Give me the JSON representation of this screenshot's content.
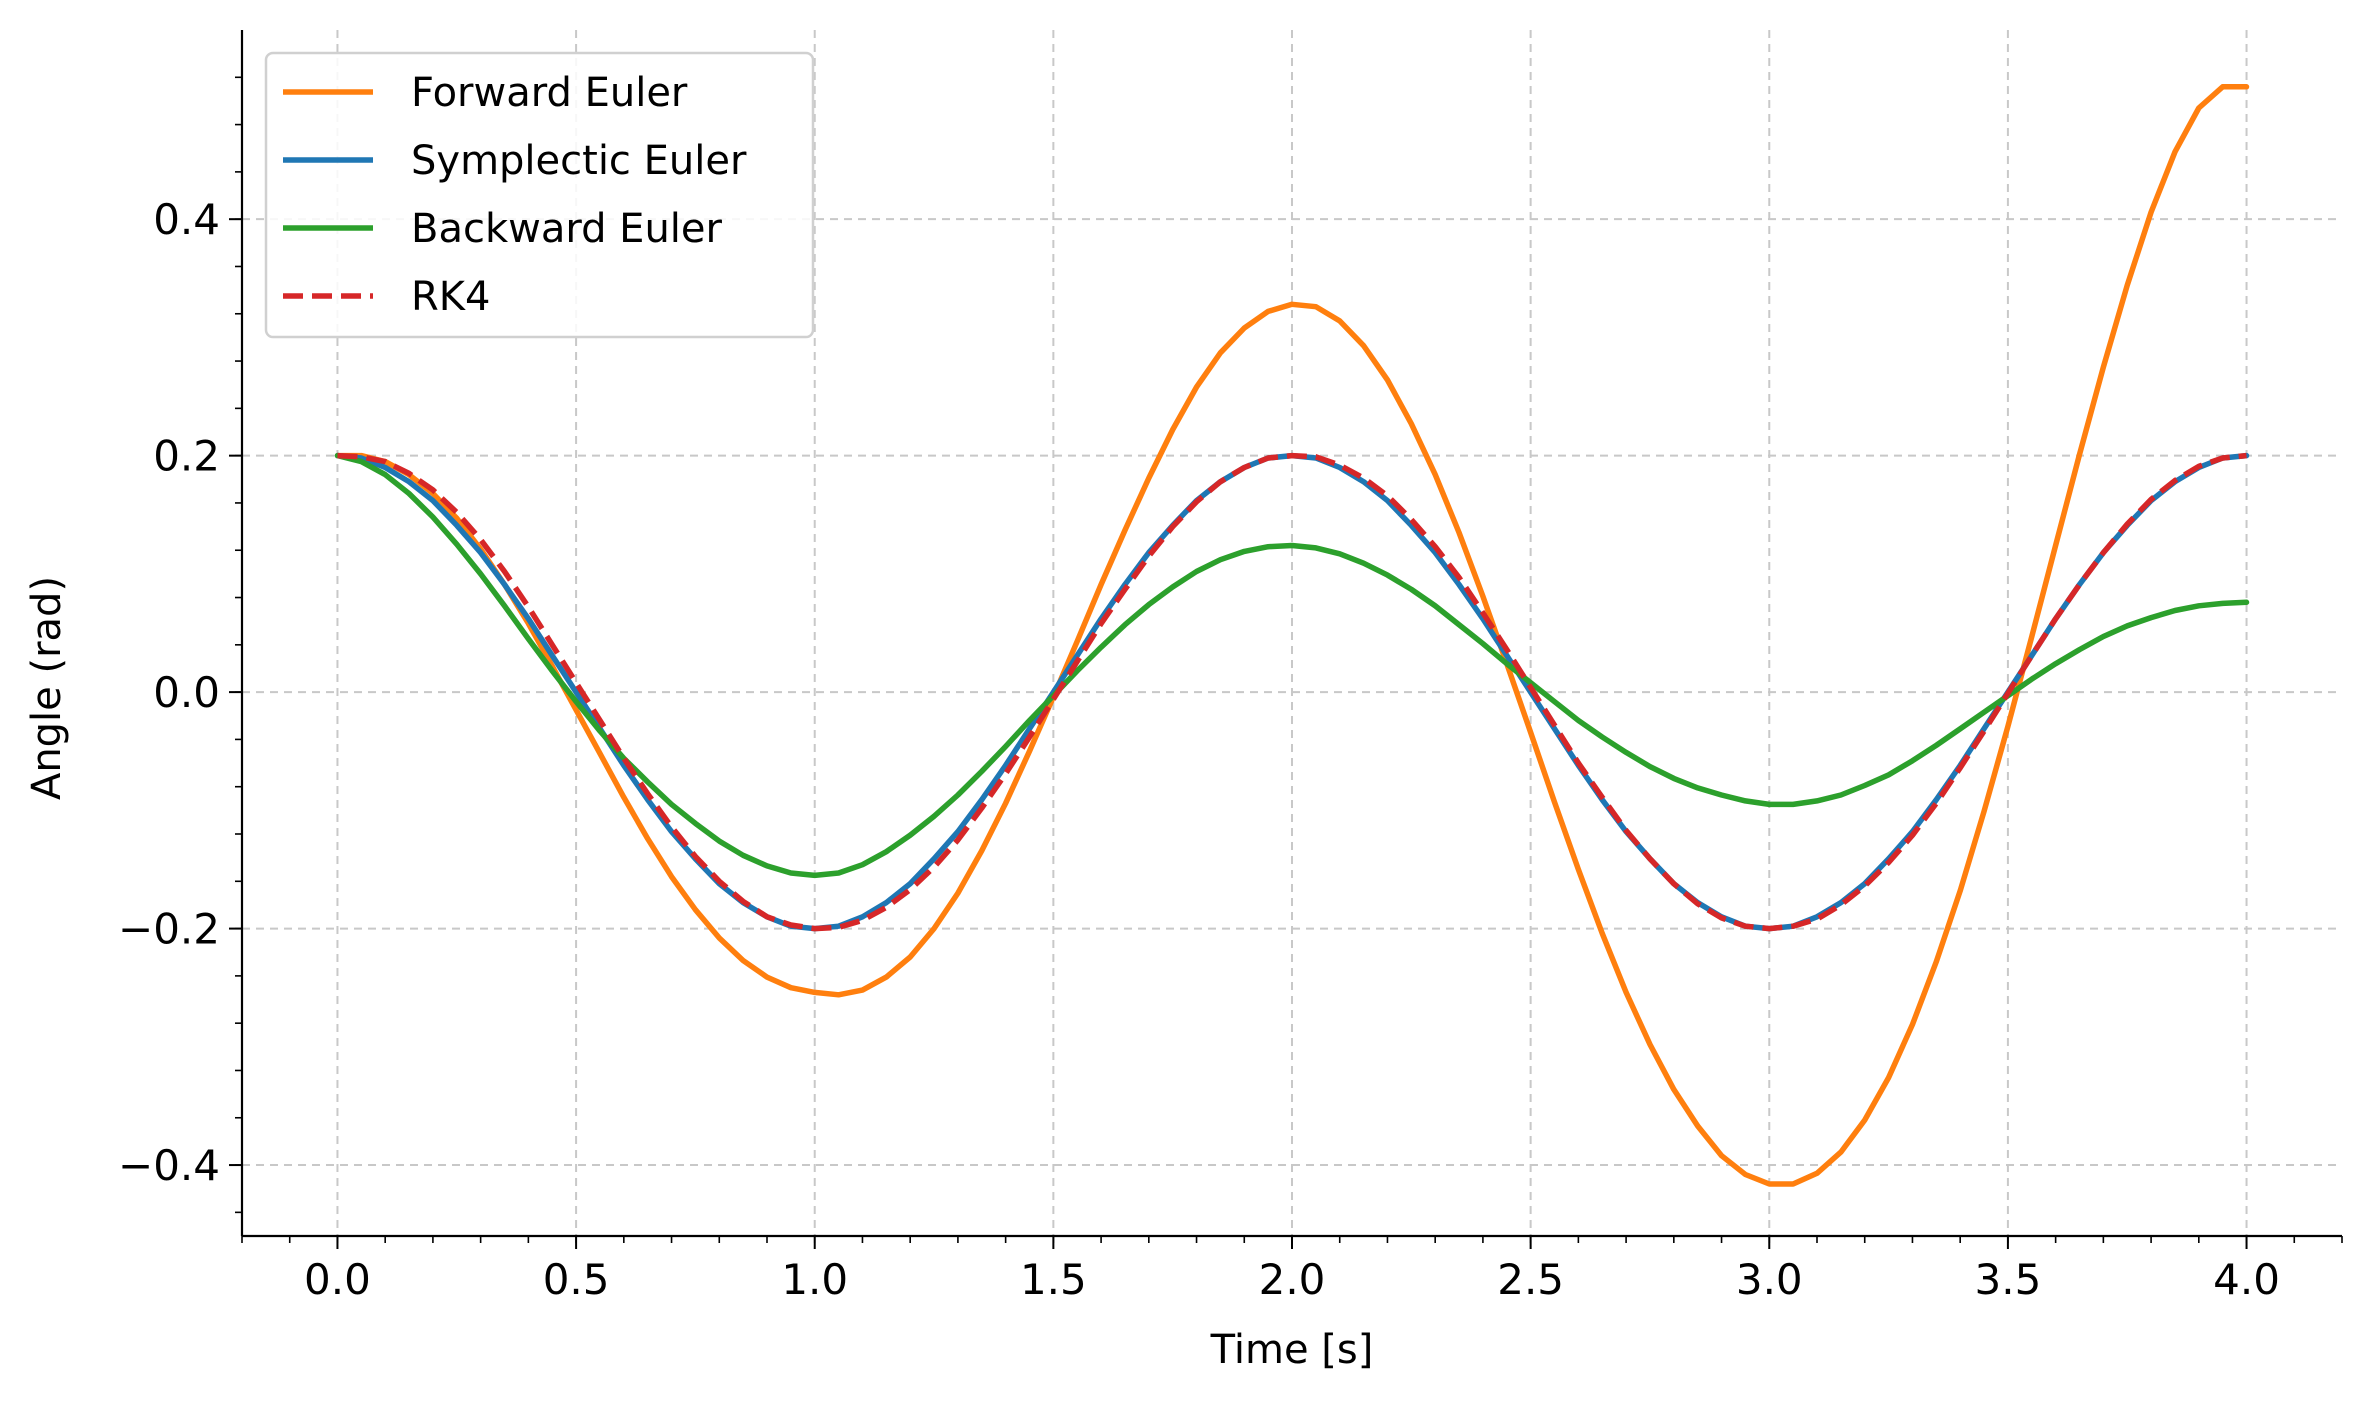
{
  "chart_data": {
    "type": "line",
    "title": "",
    "xlabel": "Time [s]",
    "ylabel": "Angle (rad)",
    "xlim": [
      -0.2,
      4.2
    ],
    "ylim": [
      -0.46,
      0.56
    ],
    "xticks": [
      0.0,
      0.5,
      1.0,
      1.5,
      2.0,
      2.5,
      3.0,
      3.5,
      4.0
    ],
    "xtick_labels": [
      "0.0",
      "0.5",
      "1.0",
      "1.5",
      "2.0",
      "2.5",
      "3.0",
      "3.5",
      "4.0"
    ],
    "yticks": [
      -0.4,
      -0.2,
      0.0,
      0.2,
      0.4
    ],
    "ytick_labels": [
      "−0.4",
      "−0.2",
      "0.0",
      "0.2",
      "0.4"
    ],
    "grid": true,
    "legend_position": "top-left",
    "series": [
      {
        "name": "Forward Euler",
        "color": "#ff7f0e",
        "dashed": false,
        "x": [
          0.0,
          0.05,
          0.1,
          0.15,
          0.2,
          0.25,
          0.3,
          0.35,
          0.4,
          0.45,
          0.5,
          0.55,
          0.6,
          0.65,
          0.7,
          0.75,
          0.8,
          0.85,
          0.9,
          0.95,
          1.0,
          1.05,
          1.1,
          1.15,
          1.2,
          1.25,
          1.3,
          1.35,
          1.4,
          1.45,
          1.5,
          1.55,
          1.6,
          1.65,
          1.7,
          1.75,
          1.8,
          1.85,
          1.9,
          1.95,
          2.0,
          2.05,
          2.1,
          2.15,
          2.2,
          2.25,
          2.3,
          2.35,
          2.4,
          2.45,
          2.5,
          2.55,
          2.6,
          2.65,
          2.7,
          2.75,
          2.8,
          2.85,
          2.9,
          2.95,
          3.0,
          3.05,
          3.1,
          3.15,
          3.2,
          3.25,
          3.3,
          3.35,
          3.4,
          3.45,
          3.5,
          3.55,
          3.6,
          3.65,
          3.7,
          3.75,
          3.8,
          3.85,
          3.9,
          3.95,
          4.0
        ],
        "y": [
          0.2,
          0.2,
          0.195,
          0.184,
          0.168,
          0.147,
          0.121,
          0.091,
          0.058,
          0.022,
          -0.015,
          -0.052,
          -0.089,
          -0.124,
          -0.156,
          -0.184,
          -0.208,
          -0.227,
          -0.241,
          -0.25,
          -0.254,
          -0.256,
          -0.252,
          -0.241,
          -0.224,
          -0.2,
          -0.17,
          -0.134,
          -0.094,
          -0.05,
          -0.004,
          0.043,
          0.091,
          0.137,
          0.181,
          0.222,
          0.258,
          0.287,
          0.308,
          0.322,
          0.328,
          0.326,
          0.314,
          0.293,
          0.264,
          0.227,
          0.184,
          0.135,
          0.081,
          0.024,
          -0.034,
          -0.093,
          -0.15,
          -0.204,
          -0.254,
          -0.298,
          -0.336,
          -0.367,
          -0.392,
          -0.408,
          -0.416,
          -0.416,
          -0.407,
          -0.389,
          -0.362,
          -0.326,
          -0.281,
          -0.228,
          -0.168,
          -0.101,
          -0.029,
          0.047,
          0.124,
          0.201,
          0.275,
          0.344,
          0.406,
          0.457,
          0.494,
          0.512,
          0.512
        ]
      },
      {
        "name": "Symplectic Euler",
        "color": "#1f77b4",
        "dashed": false,
        "x": [
          0.0,
          0.05,
          0.1,
          0.15,
          0.2,
          0.25,
          0.3,
          0.35,
          0.4,
          0.45,
          0.5,
          0.55,
          0.6,
          0.65,
          0.7,
          0.75,
          0.8,
          0.85,
          0.9,
          0.95,
          1.0,
          1.05,
          1.1,
          1.15,
          1.2,
          1.25,
          1.3,
          1.35,
          1.4,
          1.45,
          1.5,
          1.55,
          1.6,
          1.65,
          1.7,
          1.75,
          1.8,
          1.85,
          1.9,
          1.95,
          2.0,
          2.05,
          2.1,
          2.15,
          2.2,
          2.25,
          2.3,
          2.35,
          2.4,
          2.45,
          2.5,
          2.55,
          2.6,
          2.65,
          2.7,
          2.75,
          2.8,
          2.85,
          2.9,
          2.95,
          3.0,
          3.05,
          3.1,
          3.15,
          3.2,
          3.25,
          3.3,
          3.35,
          3.4,
          3.45,
          3.5,
          3.55,
          3.6,
          3.65,
          3.7,
          3.75,
          3.8,
          3.85,
          3.9,
          3.95,
          4.0
        ],
        "y": [
          0.2,
          0.198,
          0.19,
          0.178,
          0.162,
          0.141,
          0.118,
          0.091,
          0.062,
          0.031,
          0.0,
          -0.031,
          -0.062,
          -0.091,
          -0.118,
          -0.141,
          -0.162,
          -0.178,
          -0.19,
          -0.198,
          -0.2,
          -0.198,
          -0.19,
          -0.178,
          -0.162,
          -0.141,
          -0.118,
          -0.091,
          -0.062,
          -0.031,
          0.0,
          0.031,
          0.062,
          0.091,
          0.118,
          0.141,
          0.162,
          0.178,
          0.19,
          0.198,
          0.2,
          0.198,
          0.19,
          0.178,
          0.162,
          0.141,
          0.118,
          0.091,
          0.062,
          0.031,
          0.0,
          -0.031,
          -0.062,
          -0.091,
          -0.118,
          -0.141,
          -0.162,
          -0.178,
          -0.19,
          -0.198,
          -0.2,
          -0.198,
          -0.19,
          -0.178,
          -0.162,
          -0.141,
          -0.118,
          -0.091,
          -0.062,
          -0.031,
          0.0,
          0.031,
          0.062,
          0.091,
          0.118,
          0.141,
          0.162,
          0.178,
          0.19,
          0.198,
          0.2
        ]
      },
      {
        "name": "Backward Euler",
        "color": "#2ca02c",
        "dashed": false,
        "x": [
          0.0,
          0.05,
          0.1,
          0.15,
          0.2,
          0.25,
          0.3,
          0.35,
          0.4,
          0.45,
          0.5,
          0.55,
          0.6,
          0.65,
          0.7,
          0.75,
          0.8,
          0.85,
          0.9,
          0.95,
          1.0,
          1.05,
          1.1,
          1.15,
          1.2,
          1.25,
          1.3,
          1.35,
          1.4,
          1.45,
          1.5,
          1.55,
          1.6,
          1.65,
          1.7,
          1.75,
          1.8,
          1.85,
          1.9,
          1.95,
          2.0,
          2.05,
          2.1,
          2.15,
          2.2,
          2.25,
          2.3,
          2.35,
          2.4,
          2.45,
          2.5,
          2.55,
          2.6,
          2.65,
          2.7,
          2.75,
          2.8,
          2.85,
          2.9,
          2.95,
          3.0,
          3.05,
          3.1,
          3.15,
          3.2,
          3.25,
          3.3,
          3.35,
          3.4,
          3.45,
          3.5,
          3.55,
          3.6,
          3.65,
          3.7,
          3.75,
          3.8,
          3.85,
          3.9,
          3.95,
          4.0
        ],
        "y": [
          0.2,
          0.195,
          0.184,
          0.168,
          0.148,
          0.125,
          0.1,
          0.073,
          0.045,
          0.018,
          -0.008,
          -0.033,
          -0.056,
          -0.076,
          -0.095,
          -0.111,
          -0.126,
          -0.138,
          -0.147,
          -0.153,
          -0.155,
          -0.153,
          -0.146,
          -0.135,
          -0.121,
          -0.105,
          -0.087,
          -0.067,
          -0.046,
          -0.024,
          -0.003,
          0.018,
          0.038,
          0.057,
          0.074,
          0.089,
          0.102,
          0.112,
          0.119,
          0.123,
          0.124,
          0.122,
          0.117,
          0.109,
          0.099,
          0.087,
          0.073,
          0.057,
          0.041,
          0.024,
          0.008,
          -0.008,
          -0.024,
          -0.038,
          -0.051,
          -0.063,
          -0.073,
          -0.081,
          -0.087,
          -0.092,
          -0.095,
          -0.095,
          -0.092,
          -0.087,
          -0.079,
          -0.07,
          -0.058,
          -0.045,
          -0.031,
          -0.017,
          -0.003,
          0.011,
          0.024,
          0.036,
          0.047,
          0.056,
          0.063,
          0.069,
          0.073,
          0.075,
          0.076
        ]
      },
      {
        "name": "RK4",
        "color": "#d62728",
        "dashed": true,
        "x": [
          0.0,
          0.05,
          0.1,
          0.15,
          0.2,
          0.25,
          0.3,
          0.35,
          0.4,
          0.45,
          0.5,
          0.55,
          0.6,
          0.65,
          0.7,
          0.75,
          0.8,
          0.85,
          0.9,
          0.95,
          1.0,
          1.05,
          1.1,
          1.15,
          1.2,
          1.25,
          1.3,
          1.35,
          1.4,
          1.45,
          1.5,
          1.55,
          1.6,
          1.65,
          1.7,
          1.75,
          1.8,
          1.85,
          1.9,
          1.95,
          2.0,
          2.05,
          2.1,
          2.15,
          2.2,
          2.25,
          2.3,
          2.35,
          2.4,
          2.45,
          2.5,
          2.55,
          2.6,
          2.65,
          2.7,
          2.75,
          2.8,
          2.85,
          2.9,
          2.95,
          3.0,
          3.05,
          3.1,
          3.15,
          3.2,
          3.25,
          3.3,
          3.35,
          3.4,
          3.45,
          3.5,
          3.55,
          3.6,
          3.65,
          3.7,
          3.75,
          3.8,
          3.85,
          3.9,
          3.95,
          4.0
        ],
        "y": [
          0.2,
          0.199,
          0.195,
          0.185,
          0.171,
          0.152,
          0.129,
          0.102,
          0.072,
          0.04,
          0.008,
          -0.024,
          -0.056,
          -0.086,
          -0.114,
          -0.139,
          -0.16,
          -0.177,
          -0.19,
          -0.197,
          -0.2,
          -0.199,
          -0.193,
          -0.182,
          -0.167,
          -0.148,
          -0.125,
          -0.098,
          -0.069,
          -0.038,
          -0.006,
          0.026,
          0.058,
          0.087,
          0.115,
          0.14,
          0.161,
          0.178,
          0.19,
          0.198,
          0.2,
          0.199,
          0.192,
          0.181,
          0.166,
          0.146,
          0.123,
          0.097,
          0.067,
          0.036,
          0.004,
          -0.028,
          -0.06,
          -0.089,
          -0.117,
          -0.141,
          -0.162,
          -0.179,
          -0.191,
          -0.198,
          -0.2,
          -0.198,
          -0.192,
          -0.18,
          -0.164,
          -0.144,
          -0.121,
          -0.094,
          -0.064,
          -0.033,
          -0.001,
          0.031,
          0.062,
          0.091,
          0.118,
          0.142,
          0.163,
          0.179,
          0.191,
          0.198,
          0.2
        ]
      }
    ]
  }
}
